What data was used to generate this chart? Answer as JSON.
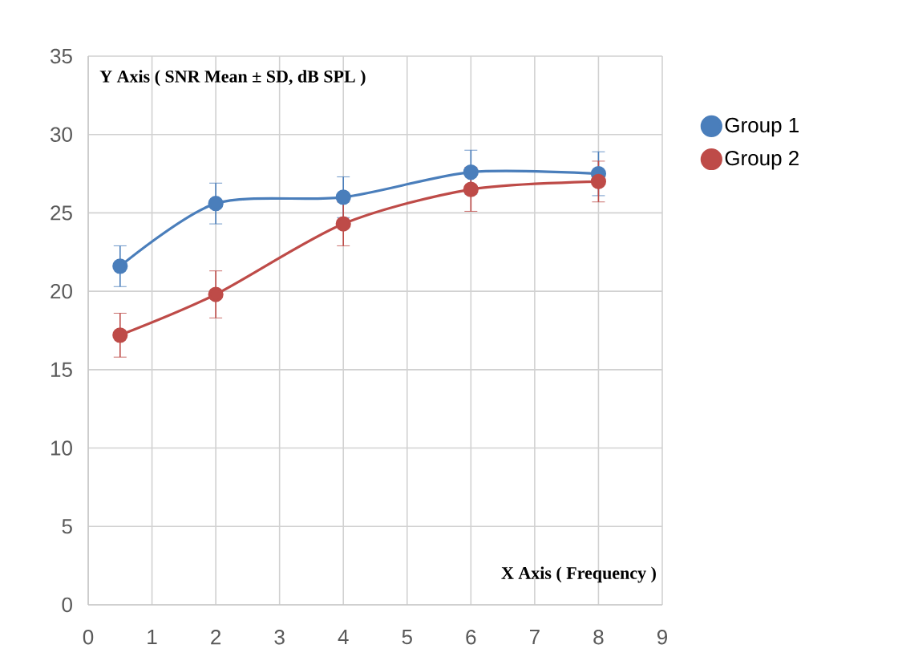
{
  "chart_data": {
    "type": "line",
    "xlabel": "X Axis ( Frequency )",
    "ylabel": "Y Axis ( SNR Mean ± SD, dB SPL )",
    "x": [
      0.5,
      2,
      4,
      6,
      8
    ],
    "series": [
      {
        "name": "Group 1",
        "color": "#4a7ebb",
        "values": [
          21.6,
          25.6,
          26.0,
          27.6,
          27.5
        ],
        "errors": [
          1.3,
          1.3,
          1.3,
          1.4,
          1.4
        ]
      },
      {
        "name": "Group 2",
        "color": "#be4b48",
        "values": [
          17.2,
          19.8,
          24.3,
          26.5,
          27.0
        ],
        "errors": [
          1.4,
          1.5,
          1.4,
          1.4,
          1.3
        ]
      }
    ],
    "xlim": [
      0,
      9
    ],
    "xticks": [
      0,
      1,
      2,
      3,
      4,
      5,
      6,
      7,
      8,
      9
    ],
    "ylim": [
      0,
      35
    ],
    "yticks": [
      0,
      5,
      10,
      15,
      20,
      25,
      30,
      35
    ],
    "grid": true,
    "legend": "right",
    "marker": "circle"
  }
}
